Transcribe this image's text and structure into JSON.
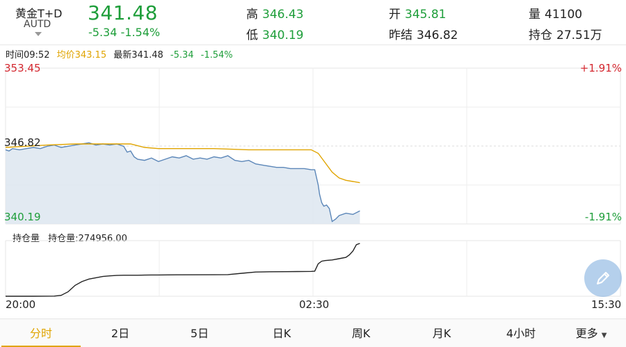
{
  "header": {
    "symbol_name": "黄金T+D",
    "symbol_code": "AUTD",
    "last_price": "341.48",
    "change": "-5.34",
    "change_pct": "-1.54%",
    "high_label": "高",
    "high_value": "346.43",
    "low_label": "低",
    "low_value": "340.19",
    "open_label": "开",
    "open_value": "345.81",
    "prev_close_label": "昨结",
    "prev_close_value": "346.82",
    "volume_label": "量",
    "volume_value": "41100",
    "open_interest_label": "持仓",
    "open_interest_value": "27.51万"
  },
  "info": {
    "time": "时间09:52",
    "avg_price": "均价343.15",
    "latest": "最新341.48",
    "change": "-5.34",
    "change_pct": "-1.54%"
  },
  "price_axis": {
    "top_price": "353.45",
    "mid_price": "346.82",
    "bottom_price": "340.19",
    "top_pct": "+1.91%",
    "bottom_pct": "-1.91%"
  },
  "oi_panel": {
    "title": "持仓量",
    "value_text": "持仓量:274956.00"
  },
  "time_axis": {
    "start": "20:00",
    "mid": "02:30",
    "end": "15:30"
  },
  "tabs": [
    "分时",
    "2日",
    "5日",
    "日K",
    "周K",
    "月K",
    "4小时",
    "更多"
  ],
  "active_tab": 0,
  "colors": {
    "up": "#d4272f",
    "down": "#1e9e3a",
    "avg": "#e0a400",
    "price_line": "#5b86b8",
    "fill": "#dde6f0",
    "accent": "#e0a400"
  },
  "chart_data": [
    {
      "type": "line",
      "series": [
        {
          "name": "price",
          "x": [
            0,
            5,
            10,
            20,
            30,
            40,
            50,
            60,
            70,
            80,
            90,
            100,
            110,
            120,
            130,
            140,
            150,
            160,
            170,
            175,
            180,
            185,
            190,
            200,
            210,
            220,
            230,
            240,
            250,
            260,
            270,
            280,
            290,
            300,
            310,
            320,
            330,
            340,
            350,
            360,
            370,
            380,
            390,
            400,
            410,
            420,
            430,
            440,
            445,
            450,
            452,
            455,
            458,
            462,
            466,
            470,
            475,
            480,
            490,
            500,
            510
          ],
          "values": [
            346.5,
            346.4,
            346.6,
            346.5,
            346.6,
            346.7,
            346.6,
            346.8,
            346.9,
            346.7,
            346.8,
            346.9,
            347.0,
            347.1,
            346.9,
            347.0,
            346.9,
            347.0,
            346.8,
            346.3,
            346.4,
            345.9,
            345.7,
            345.6,
            345.8,
            345.5,
            345.7,
            345.9,
            345.8,
            346.0,
            345.7,
            345.8,
            345.7,
            345.9,
            345.8,
            346.0,
            345.6,
            345.5,
            345.6,
            345.3,
            345.2,
            345.1,
            345.0,
            345.0,
            344.9,
            344.9,
            344.9,
            344.8,
            344.8,
            343.5,
            342.7,
            342.0,
            341.7,
            341.8,
            341.5,
            340.4,
            340.6,
            340.9,
            341.1,
            341.0,
            341.3
          ]
        },
        {
          "name": "avg",
          "x": [
            0,
            30,
            60,
            100,
            140,
            180,
            200,
            220,
            260,
            300,
            350,
            400,
            440,
            450,
            460,
            470,
            480,
            490,
            500,
            510
          ],
          "values": [
            346.7,
            346.8,
            346.9,
            347.0,
            347.0,
            347.0,
            346.7,
            346.6,
            346.6,
            346.6,
            346.5,
            346.5,
            346.5,
            346.2,
            345.4,
            344.6,
            344.1,
            343.9,
            343.8,
            343.7
          ]
        }
      ],
      "ylim": [
        340.19,
        353.45
      ]
    },
    {
      "type": "line",
      "series": [
        {
          "name": "持仓量",
          "x": [
            0,
            40,
            70,
            80,
            90,
            95,
            100,
            110,
            120,
            130,
            140,
            150,
            160,
            170,
            180,
            190,
            200,
            210,
            220,
            250,
            300,
            320,
            340,
            360,
            380,
            400,
            420,
            440,
            445,
            450,
            455,
            460,
            470,
            480,
            490,
            495,
            500,
            505,
            510
          ],
          "values": [
            0.5,
            0.5,
            0.6,
            1.2,
            4,
            6.5,
            9,
            12,
            14,
            15,
            16,
            16.5,
            16.8,
            17,
            17,
            17,
            17.1,
            17.2,
            17.2,
            17.3,
            17.4,
            17.5,
            18.5,
            19.5,
            19.7,
            19.8,
            19.9,
            20,
            20.2,
            26,
            28,
            28.5,
            29,
            30,
            31,
            33,
            36,
            41,
            42
          ]
        }
      ]
    }
  ]
}
